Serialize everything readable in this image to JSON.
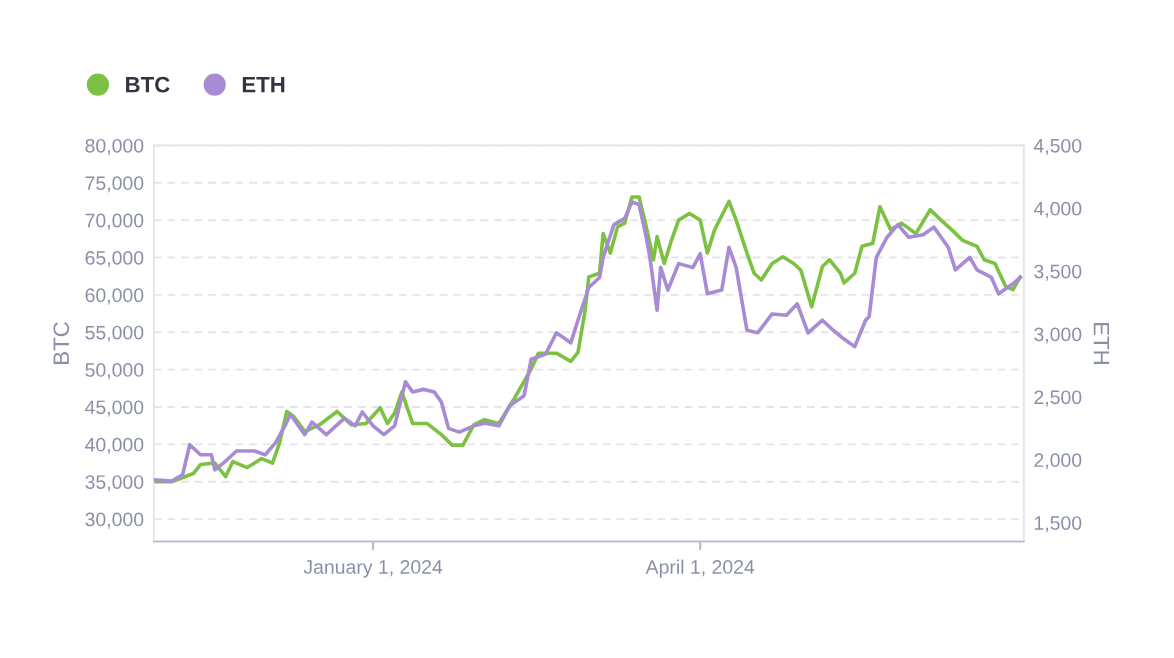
{
  "chart_data": {
    "type": "line",
    "ylabel": "BTC",
    "y2label": "ETH",
    "xlim": [
      "2023-11-01",
      "2024-06-30"
    ],
    "xticks": [
      {
        "value": "2024-01-01",
        "label": "January 1, 2024"
      },
      {
        "value": "2024-04-01",
        "label": "April 1, 2024"
      }
    ],
    "ylim": [
      27000,
      80000
    ],
    "yticks": [
      {
        "value": 30000,
        "label": "30,000"
      },
      {
        "value": 35000,
        "label": "35,000"
      },
      {
        "value": 40000,
        "label": "40,000"
      },
      {
        "value": 45000,
        "label": "45,000"
      },
      {
        "value": 50000,
        "label": "50,000"
      },
      {
        "value": 55000,
        "label": "55,000"
      },
      {
        "value": 60000,
        "label": "60,000"
      },
      {
        "value": 65000,
        "label": "65,000"
      },
      {
        "value": 70000,
        "label": "70,000"
      },
      {
        "value": 75000,
        "label": "75,000"
      },
      {
        "value": 80000,
        "label": "80,000"
      }
    ],
    "y2lim": [
      1350,
      4500
    ],
    "y2ticks": [
      {
        "value": 1500,
        "label": "1,500"
      },
      {
        "value": 2000,
        "label": "2,000"
      },
      {
        "value": 2500,
        "label": "2,500"
      },
      {
        "value": 3000,
        "label": "3,000"
      },
      {
        "value": 3500,
        "label": "3,500"
      },
      {
        "value": 4000,
        "label": "4,000"
      },
      {
        "value": 4500,
        "label": "4,500"
      }
    ],
    "grid": "y",
    "legend": "top left",
    "line_style": "solid",
    "series": [
      {
        "name": "BTC",
        "color": "#7cc142",
        "axis": "y",
        "x": [
          "2023-11-01",
          "2023-11-06",
          "2023-11-12",
          "2023-11-14",
          "2023-11-18",
          "2023-11-21",
          "2023-11-23",
          "2023-11-27",
          "2023-12-01",
          "2023-12-04",
          "2023-12-06",
          "2023-12-08",
          "2023-12-10",
          "2023-12-13",
          "2023-12-17",
          "2023-12-22",
          "2023-12-26",
          "2023-12-30",
          "2024-01-03",
          "2024-01-05",
          "2024-01-07",
          "2024-01-09",
          "2024-01-12",
          "2024-01-16",
          "2024-01-20",
          "2024-01-23",
          "2024-01-26",
          "2024-01-29",
          "2024-02-01",
          "2024-02-05",
          "2024-02-09",
          "2024-02-14",
          "2024-02-16",
          "2024-02-21",
          "2024-02-25",
          "2024-02-27",
          "2024-02-29",
          "2024-03-01",
          "2024-03-04",
          "2024-03-05",
          "2024-03-07",
          "2024-03-09",
          "2024-03-11",
          "2024-03-13",
          "2024-03-15",
          "2024-03-17",
          "2024-03-19",
          "2024-03-20",
          "2024-03-22",
          "2024-03-24",
          "2024-03-26",
          "2024-03-29",
          "2024-04-01",
          "2024-04-03",
          "2024-04-05",
          "2024-04-09",
          "2024-04-11",
          "2024-04-14",
          "2024-04-16",
          "2024-04-18",
          "2024-04-21",
          "2024-04-24",
          "2024-04-27",
          "2024-04-29",
          "2024-05-02",
          "2024-05-05",
          "2024-05-07",
          "2024-05-10",
          "2024-05-11",
          "2024-05-14",
          "2024-05-16",
          "2024-05-19",
          "2024-05-21",
          "2024-05-24",
          "2024-05-27",
          "2024-05-31",
          "2024-06-04",
          "2024-06-07",
          "2024-06-10",
          "2024-06-13",
          "2024-06-17",
          "2024-06-19",
          "2024-06-22",
          "2024-06-25",
          "2024-06-27",
          "2024-06-29"
        ],
        "values": [
          35000,
          35000,
          36100,
          37300,
          37500,
          35700,
          37700,
          36900,
          38100,
          37500,
          40200,
          44400,
          43700,
          41700,
          42600,
          44400,
          42600,
          42800,
          44900,
          42800,
          44200,
          47000,
          42800,
          42800,
          41300,
          39900,
          39900,
          42600,
          43300,
          42800,
          45900,
          50100,
          52200,
          52200,
          51100,
          52300,
          58000,
          62400,
          62900,
          68200,
          65600,
          69100,
          69600,
          73100,
          73100,
          69100,
          64700,
          67800,
          64200,
          67300,
          70000,
          70900,
          70000,
          65600,
          68700,
          72500,
          70000,
          65600,
          62900,
          62000,
          64200,
          65100,
          64200,
          63300,
          58400,
          63800,
          64700,
          62900,
          61600,
          62900,
          66500,
          66900,
          71800,
          68700,
          69600,
          68200,
          71400,
          70000,
          68700,
          67300,
          66500,
          64700,
          64200,
          61100,
          60700,
          62400
        ]
      },
      {
        "name": "ETH",
        "color": "#a88bd4",
        "axis": "y2",
        "x": [
          "2023-11-01",
          "2023-11-06",
          "2023-11-09",
          "2023-11-11",
          "2023-11-14",
          "2023-11-17",
          "2023-11-18",
          "2023-11-21",
          "2023-11-24",
          "2023-11-29",
          "2023-12-02",
          "2023-12-05",
          "2023-12-08",
          "2023-12-09",
          "2023-12-13",
          "2023-12-15",
          "2023-12-19",
          "2023-12-24",
          "2023-12-27",
          "2023-12-29",
          "2024-01-01",
          "2024-01-04",
          "2024-01-07",
          "2024-01-10",
          "2024-01-12",
          "2024-01-15",
          "2024-01-18",
          "2024-01-20",
          "2024-01-22",
          "2024-01-25",
          "2024-01-29",
          "2024-02-01",
          "2024-02-05",
          "2024-02-08",
          "2024-02-12",
          "2024-02-14",
          "2024-02-18",
          "2024-02-21",
          "2024-02-25",
          "2024-02-27",
          "2024-03-01",
          "2024-03-04",
          "2024-03-05",
          "2024-03-08",
          "2024-03-11",
          "2024-03-13",
          "2024-03-15",
          "2024-03-17",
          "2024-03-18",
          "2024-03-20",
          "2024-03-21",
          "2024-03-23",
          "2024-03-26",
          "2024-03-30",
          "2024-04-01",
          "2024-04-03",
          "2024-04-07",
          "2024-04-09",
          "2024-04-11",
          "2024-04-14",
          "2024-04-17",
          "2024-04-21",
          "2024-04-25",
          "2024-04-28",
          "2024-05-01",
          "2024-05-05",
          "2024-05-08",
          "2024-05-11",
          "2024-05-14",
          "2024-05-17",
          "2024-05-18",
          "2024-05-20",
          "2024-05-23",
          "2024-05-26",
          "2024-05-29",
          "2024-06-02",
          "2024-06-05",
          "2024-06-09",
          "2024-06-11",
          "2024-06-15",
          "2024-06-17",
          "2024-06-21",
          "2024-06-23",
          "2024-06-27",
          "2024-06-29"
        ],
        "values": [
          1840,
          1830,
          1880,
          2120,
          2040,
          2040,
          1920,
          1990,
          2070,
          2070,
          2040,
          2140,
          2300,
          2360,
          2200,
          2300,
          2200,
          2330,
          2270,
          2380,
          2270,
          2200,
          2270,
          2620,
          2540,
          2560,
          2540,
          2460,
          2250,
          2220,
          2270,
          2290,
          2270,
          2430,
          2510,
          2800,
          2840,
          3010,
          2930,
          3110,
          3370,
          3450,
          3610,
          3870,
          3920,
          4050,
          4030,
          3770,
          3610,
          3190,
          3530,
          3350,
          3560,
          3530,
          3640,
          3320,
          3350,
          3690,
          3530,
          3030,
          3010,
          3160,
          3150,
          3240,
          3010,
          3110,
          3030,
          2960,
          2900,
          3110,
          3140,
          3610,
          3770,
          3870,
          3770,
          3790,
          3850,
          3690,
          3510,
          3610,
          3510,
          3450,
          3320,
          3400,
          3450
        ]
      }
    ]
  }
}
